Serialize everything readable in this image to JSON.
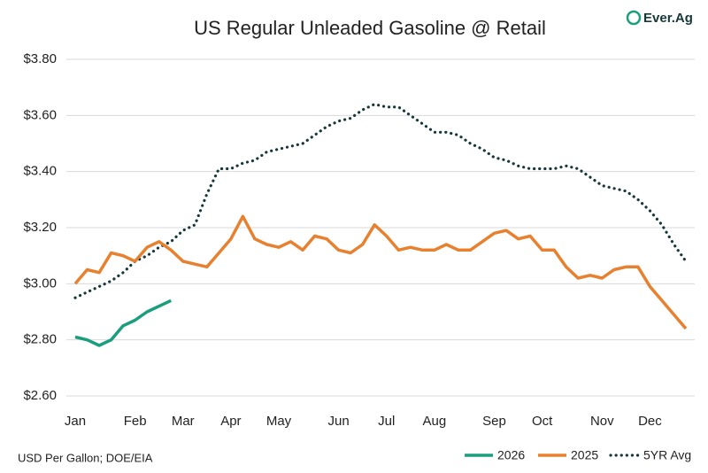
{
  "logo": "Ever.Ag",
  "chart_data": {
    "type": "line",
    "title": "US Regular Unleaded Gasoline @ Retail",
    "note": "USD Per Gallon; DOE/EIA",
    "categories": [
      "Jan",
      null,
      null,
      null,
      null,
      "Feb",
      null,
      null,
      null,
      "Mar",
      null,
      null,
      null,
      "Apr",
      null,
      null,
      null,
      "May",
      null,
      null,
      null,
      null,
      "Jun",
      null,
      null,
      null,
      "Jul",
      null,
      null,
      null,
      "Aug",
      null,
      null,
      null,
      null,
      "Sep",
      null,
      null,
      null,
      "Oct",
      null,
      null,
      null,
      null,
      "Nov",
      null,
      null,
      null,
      "Dec",
      null,
      null,
      null
    ],
    "ylim": [
      2.6,
      3.8
    ],
    "yticks": [
      {
        "value": 2.6,
        "label": "$2.60"
      },
      {
        "value": 2.8,
        "label": "$2.80"
      },
      {
        "value": 3.0,
        "label": "$3.00"
      },
      {
        "value": 3.2,
        "label": "$3.20"
      },
      {
        "value": 3.4,
        "label": "$3.40"
      },
      {
        "value": 3.6,
        "label": "$3.60"
      },
      {
        "value": 3.8,
        "label": "$3.80"
      }
    ],
    "grid": true,
    "legend": "bottom-right",
    "series": [
      {
        "name": "2026",
        "color": "#1a9e7e",
        "style": "solid",
        "values": [
          2.81,
          2.8,
          2.78,
          2.8,
          2.85,
          2.87,
          2.9,
          2.92,
          2.94,
          null,
          null,
          null,
          null,
          null,
          null,
          null,
          null,
          null,
          null,
          null,
          null,
          null,
          null,
          null,
          null,
          null,
          null,
          null,
          null,
          null,
          null,
          null,
          null,
          null,
          null,
          null,
          null,
          null,
          null,
          null,
          null,
          null,
          null,
          null,
          null,
          null,
          null,
          null,
          null,
          null,
          null,
          null
        ]
      },
      {
        "name": "2025",
        "color": "#e8812f",
        "style": "solid",
        "values": [
          3.0,
          3.05,
          3.04,
          3.11,
          3.1,
          3.08,
          3.13,
          3.15,
          3.12,
          3.08,
          3.07,
          3.06,
          3.11,
          3.16,
          3.24,
          3.16,
          3.14,
          3.13,
          3.15,
          3.12,
          3.17,
          3.16,
          3.12,
          3.11,
          3.14,
          3.21,
          3.17,
          3.12,
          3.13,
          3.12,
          3.12,
          3.14,
          3.12,
          3.12,
          3.15,
          3.18,
          3.19,
          3.16,
          3.17,
          3.12,
          3.12,
          3.06,
          3.02,
          3.03,
          3.02,
          3.05,
          3.06,
          3.06,
          2.99,
          2.94,
          2.89,
          2.84
        ]
      },
      {
        "name": "5YR Avg",
        "color": "#16383a",
        "style": "dotted",
        "values": [
          2.95,
          2.97,
          2.99,
          3.01,
          3.04,
          3.08,
          3.1,
          3.13,
          3.15,
          3.19,
          3.21,
          3.32,
          3.41,
          3.41,
          3.43,
          3.44,
          3.47,
          3.48,
          3.49,
          3.5,
          3.53,
          3.56,
          3.58,
          3.59,
          3.62,
          3.64,
          3.63,
          3.63,
          3.6,
          3.57,
          3.54,
          3.54,
          3.53,
          3.5,
          3.48,
          3.45,
          3.44,
          3.42,
          3.41,
          3.41,
          3.41,
          3.42,
          3.41,
          3.38,
          3.35,
          3.34,
          3.33,
          3.3,
          3.26,
          3.21,
          3.14,
          3.08
        ]
      }
    ]
  }
}
